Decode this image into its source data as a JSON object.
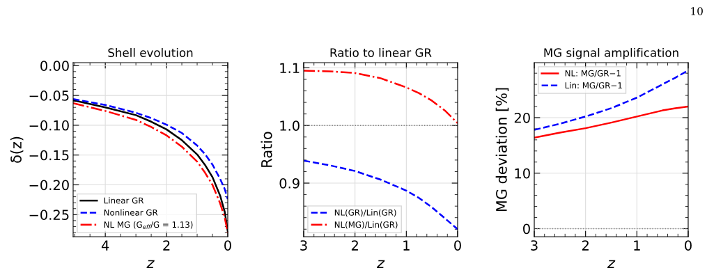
{
  "chart_data": [
    {
      "type": "line",
      "title": "Shell evolution",
      "xlabel": "z",
      "ylabel": "δ(z)",
      "xlim": [
        5.05,
        0
      ],
      "ylim": [
        -0.287,
        0.005
      ],
      "xticks": [
        4,
        2,
        0
      ],
      "yticks": [
        {
          "value": 0,
          "label": "0.00"
        },
        {
          "value": -0.05,
          "label": "−0.05"
        },
        {
          "value": -0.1,
          "label": "−0.10"
        },
        {
          "value": -0.15,
          "label": "−0.15"
        },
        {
          "value": -0.2,
          "label": "−0.20"
        },
        {
          "value": -0.25,
          "label": "−0.25"
        }
      ],
      "grid": true,
      "legend": "bottom left",
      "x": [
        5.05,
        4,
        3,
        2.5,
        2,
        1.5,
        1,
        0.75,
        0.5,
        0.25,
        0.1,
        0
      ],
      "series": [
        {
          "name": "Linear GR",
          "color": "#000000",
          "line_style": "solid",
          "values": [
            -0.058,
            -0.07,
            -0.083,
            -0.094,
            -0.107,
            -0.125,
            -0.149,
            -0.166,
            -0.187,
            -0.218,
            -0.245,
            -0.278
          ]
        },
        {
          "name": "Nonlinear GR",
          "color": "#0000ff",
          "line_style": "dashed",
          "values": [
            -0.056,
            -0.066,
            -0.079,
            -0.088,
            -0.099,
            -0.113,
            -0.134,
            -0.148,
            -0.166,
            -0.19,
            -0.207,
            -0.224
          ]
        },
        {
          "name": "NL MG (G$_{eff}$/G = 1.13)",
          "color": "#ff0000",
          "line_style": "dashdot",
          "values": [
            -0.063,
            -0.076,
            -0.091,
            -0.103,
            -0.117,
            -0.136,
            -0.161,
            -0.179,
            -0.2,
            -0.231,
            -0.255,
            -0.28
          ]
        }
      ]
    },
    {
      "type": "line",
      "title": "Ratio to linear GR",
      "xlabel": "z",
      "ylabel": "Ratio",
      "xlim": [
        3,
        0
      ],
      "ylim": [
        0.807,
        1.109
      ],
      "xticks": [
        3,
        2,
        1,
        0
      ],
      "yticks": [
        0.9,
        {
          "value": 1.0,
          "label": "1.0"
        },
        1.1
      ],
      "grid": true,
      "legend": "bottom left",
      "ref_lines": [
        {
          "axis": "y",
          "value": 1.0,
          "color": "#808080",
          "line_style": "dotted"
        }
      ],
      "x": [
        3,
        2.5,
        2,
        1.5,
        1,
        0.75,
        0.5,
        0.25,
        0
      ],
      "series": [
        {
          "name": "NL(GR)/Lin(GR)",
          "color": "#0000ff",
          "line_style": "dashed",
          "values": [
            0.939,
            0.931,
            0.921,
            0.906,
            0.887,
            0.874,
            0.858,
            0.839,
            0.82
          ]
        },
        {
          "name": "NL(MG)/Lin(GR)",
          "color": "#ff0000",
          "line_style": "dashdot",
          "values": [
            1.095,
            1.094,
            1.091,
            1.082,
            1.066,
            1.056,
            1.043,
            1.026,
            1.004
          ]
        }
      ]
    },
    {
      "type": "line",
      "title": "MG signal amplification",
      "xlabel": "z",
      "ylabel": "MG deviation [%]",
      "xlim": [
        3,
        0
      ],
      "ylim": [
        -1.44,
        29.9
      ],
      "xticks": [
        3,
        2,
        1,
        0
      ],
      "yticks": [
        0,
        10,
        20
      ],
      "grid": true,
      "legend": "top left",
      "ref_lines": [
        {
          "axis": "y",
          "value": 0,
          "color": "#808080",
          "line_style": "dotted"
        }
      ],
      "annotations": [
        "10"
      ],
      "x": [
        3,
        2.5,
        2,
        1.5,
        1,
        0.5,
        0.25,
        0
      ],
      "series": [
        {
          "name": "NL: MG/GR−1",
          "color": "#ff0000",
          "line_style": "solid",
          "values": [
            16.4,
            17.3,
            18.1,
            19.1,
            20.2,
            21.3,
            21.7,
            22
          ]
        },
        {
          "name": "Lin: MG/GR−1",
          "color": "#0000ff",
          "line_style": "dashed",
          "values": [
            17.8,
            18.9,
            20.2,
            21.7,
            23.6,
            26,
            27.2,
            28.5
          ]
        }
      ]
    }
  ]
}
